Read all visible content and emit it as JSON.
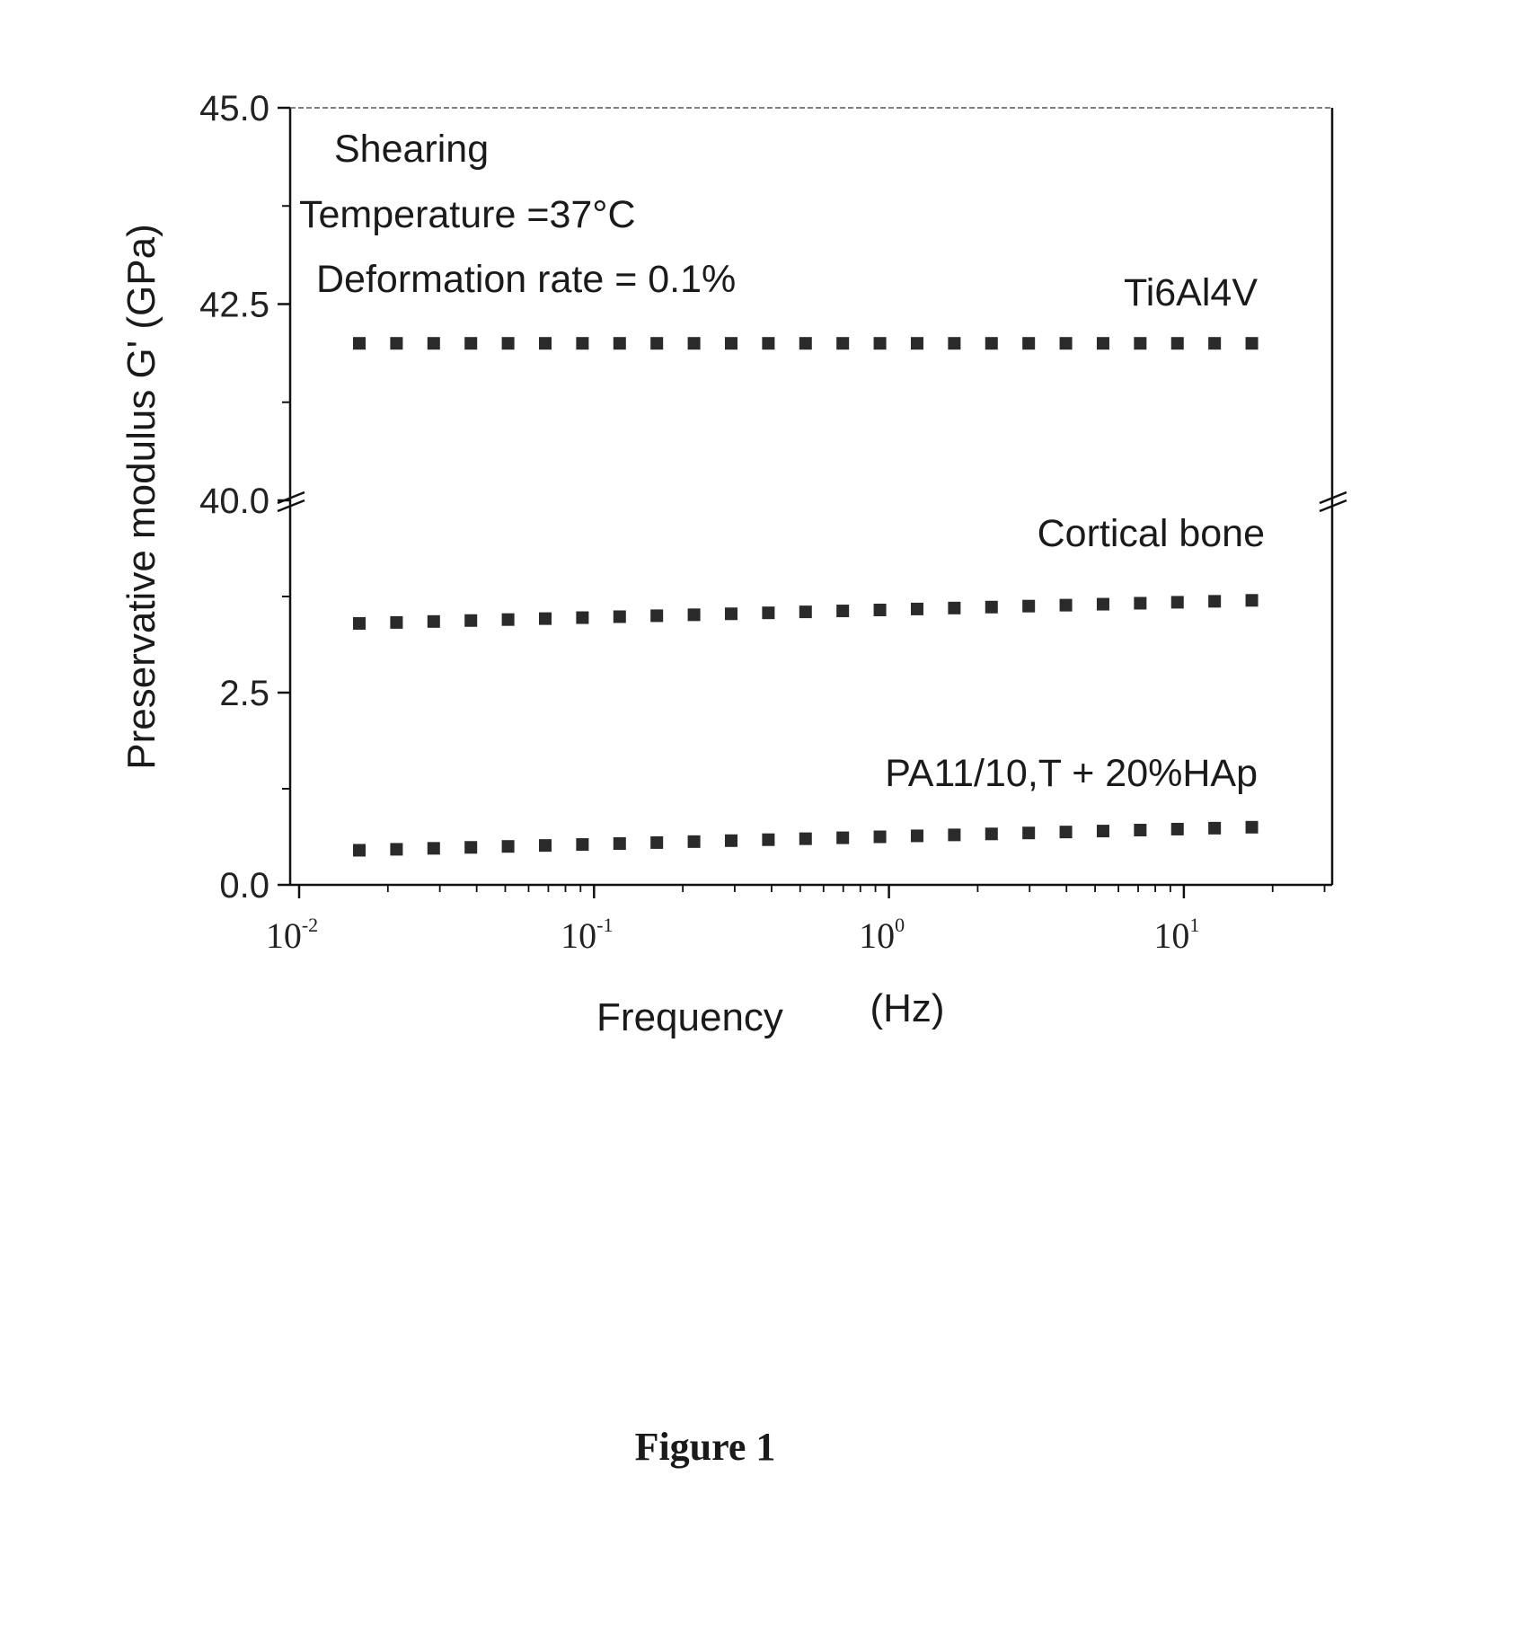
{
  "chart_data": {
    "type": "scatter",
    "caption": "Figure 1",
    "xlabel": "Frequency",
    "xunit": "(Hz)",
    "ylabel": "Preservative modulus G' (GPa)",
    "x_scale": "log",
    "xlim": [
      0.01,
      30
    ],
    "ylim": [
      0,
      45
    ],
    "y_axis_break": 40.0,
    "y_ticks": [
      "45.0",
      "42.5",
      "40.0",
      "2.5",
      "0.0"
    ],
    "x_ticks": [
      {
        "base": "10",
        "exp": "-2"
      },
      {
        "base": "10",
        "exp": "-1"
      },
      {
        "base": "10",
        "exp": "0"
      },
      {
        "base": "10",
        "exp": "1"
      }
    ],
    "annotations": [
      "Shearing",
      "Temperature =37°C",
      "Deformation rate = 0.1%"
    ],
    "marker": "square",
    "marker_color": "#2a2a2a",
    "points_per_decade": 8,
    "freq_range": [
      0.016,
      17
    ],
    "series": [
      {
        "name": "Ti6Al4V",
        "y_start": 42.0,
        "y_end": 42.0
      },
      {
        "name": "Cortical bone",
        "y_start": 3.4,
        "y_end": 3.7
      },
      {
        "name": "PA11/10,T + 20%HAp",
        "y_start": 0.45,
        "y_end": 0.75
      }
    ]
  }
}
